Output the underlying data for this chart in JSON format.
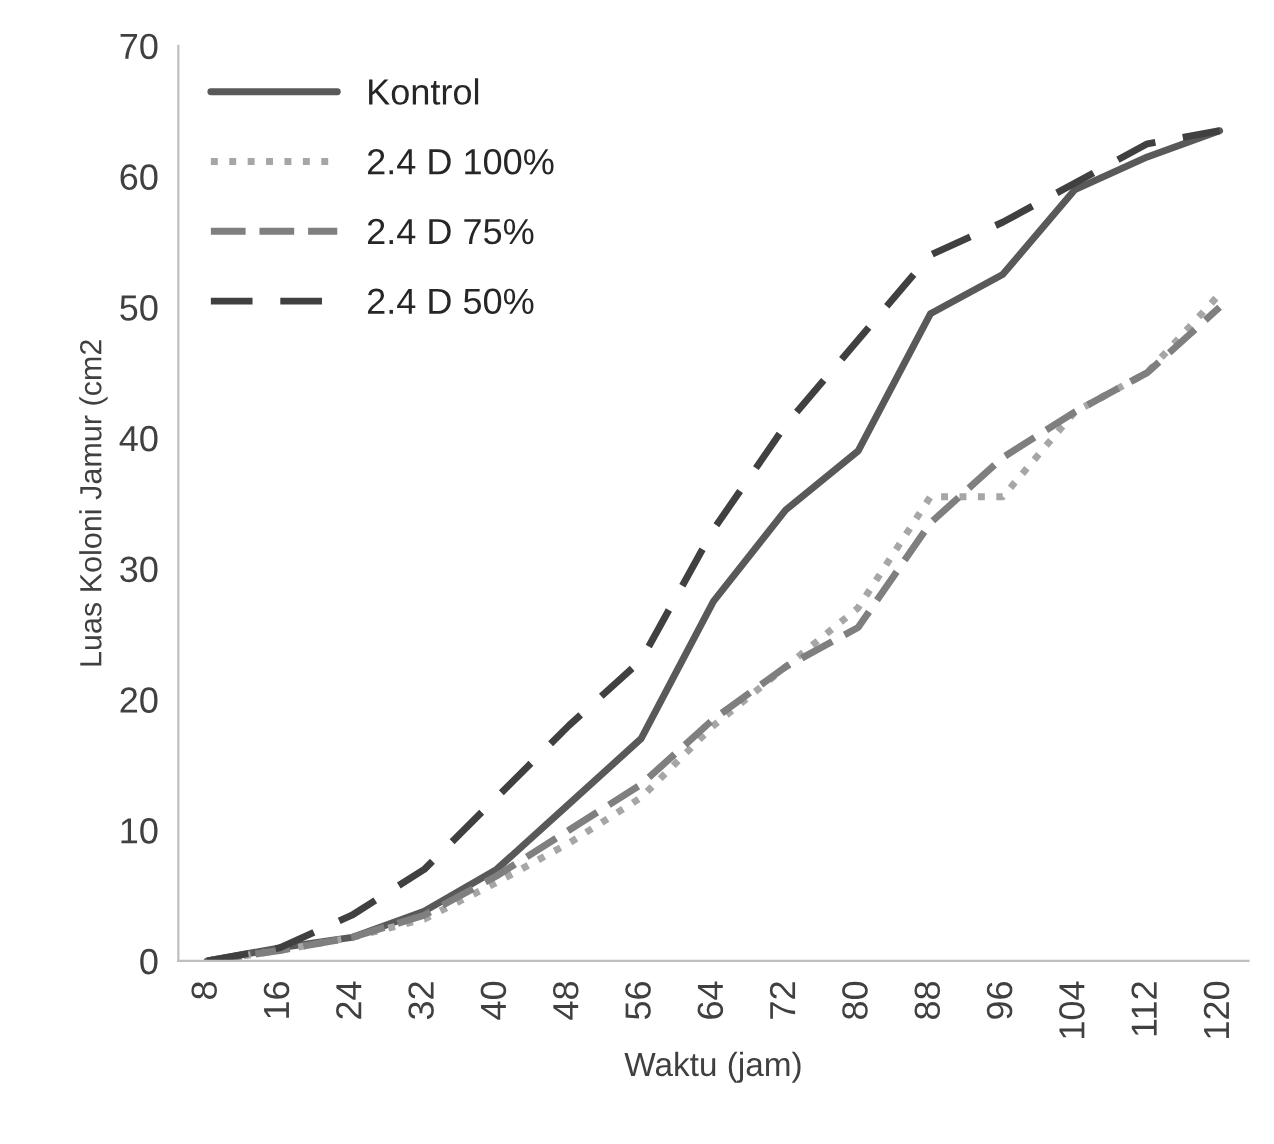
{
  "chart_data": {
    "type": "line",
    "xlabel": "Waktu (jam)",
    "ylabel": "Luas Koloni Jamur (cm2",
    "categories": [
      "8",
      "16",
      "24",
      "32",
      "40",
      "48",
      "56",
      "64",
      "72",
      "80",
      "88",
      "96",
      "104",
      "112",
      "120"
    ],
    "series": [
      {
        "name": "Kontrol",
        "color": "#595959",
        "line_style": "solid",
        "values": [
          0,
          1,
          1.8,
          3.8,
          7,
          12,
          17,
          27.5,
          34.5,
          39,
          49.5,
          52.5,
          59,
          61.5,
          63.5
        ]
      },
      {
        "name": "2.4 D 100%",
        "color": "#a6a6a6",
        "line_style": "dotted",
        "values": [
          0,
          0.8,
          1.8,
          3.2,
          6,
          9,
          12.5,
          18,
          22.5,
          27,
          35.5,
          35.5,
          42,
          45,
          51
        ]
      },
      {
        "name": "2.4 D 75%",
        "color": "#7f7f7f",
        "line_style": "dashed",
        "values": [
          0,
          0.8,
          1.8,
          3.5,
          6.5,
          10,
          13.5,
          18.5,
          22.5,
          25.5,
          33.5,
          38.5,
          42,
          45,
          50
        ]
      },
      {
        "name": "2.4 D 50%",
        "color": "#404040",
        "line_style": "dashed",
        "values": [
          0,
          1,
          3.5,
          7,
          12.5,
          18,
          23,
          33,
          41,
          47.5,
          54,
          56.5,
          59.5,
          62.5,
          63.5
        ]
      }
    ],
    "ylim": [
      0,
      70
    ],
    "yticks": [
      0,
      10,
      20,
      30,
      40,
      50,
      60,
      70
    ],
    "grid": false,
    "legend": "top left"
  }
}
